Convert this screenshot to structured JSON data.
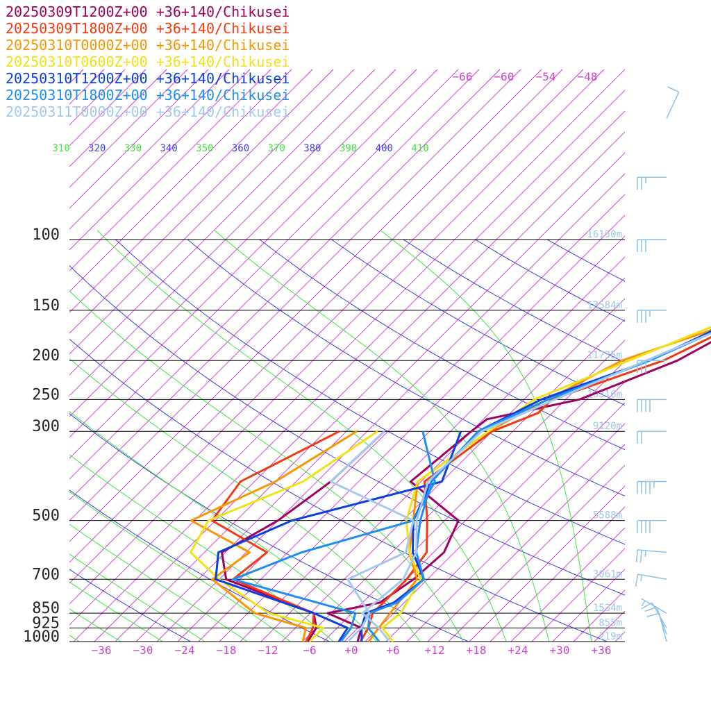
{
  "chart_data": {
    "type": "line",
    "title": "",
    "xlabel": "",
    "ylabel": "",
    "legend_placement": "top-left",
    "xlim": [
      -40,
      40
    ],
    "pressure_range": [
      1000,
      100
    ],
    "pressure_levels": [
      100,
      150,
      200,
      250,
      300,
      500,
      700,
      850,
      925,
      1000
    ],
    "pressure_labels": [
      "100",
      "150",
      "200",
      "250",
      "300",
      "500",
      "700",
      "850",
      "925",
      "1000"
    ],
    "temperature_ticks": [
      -36,
      -30,
      -24,
      -18,
      -12,
      -6,
      0,
      6,
      12,
      18,
      24,
      30,
      36
    ],
    "temperature_tick_labels": [
      "−36",
      "−30",
      "−24",
      "−18",
      "−12",
      "−6",
      "+0",
      "+6",
      "+12",
      "+18",
      "+24",
      "+30",
      "+36"
    ],
    "upper_temperature_labels": [
      "−66",
      "−60",
      "−54",
      "−48"
    ],
    "theta_e_labels": [
      "310",
      "320",
      "330",
      "340",
      "350",
      "360",
      "370",
      "380",
      "390",
      "400",
      "410"
    ],
    "height_labels": [
      {
        "p": 100,
        "text": "16150m"
      },
      {
        "p": 150,
        "text": "13584m"
      },
      {
        "p": 200,
        "text": "11735m"
      },
      {
        "p": 250,
        "text": "10316m"
      },
      {
        "p": 300,
        "text": "9120m"
      },
      {
        "p": 500,
        "text": "5588m"
      },
      {
        "p": 700,
        "text": "3061m"
      },
      {
        "p": 850,
        "text": "1534m"
      },
      {
        "p": 925,
        "text": "855m"
      },
      {
        "p": 1000,
        "text": "219m"
      }
    ],
    "colors": {
      "isotherm": "#d02ad0",
      "theta": "#3c3ce8",
      "theta_e": "#3be83b",
      "isobar": "#000000",
      "height": "#9fc6e8",
      "axis_label": "#d040d0",
      "wind": "#8ec0ea"
    },
    "series": [
      {
        "name": "20250309T1200Z+00 +36+140/Chikusei",
        "color": "#a0005f",
        "temperature": [
          [
            1000,
            0.9
          ],
          [
            925,
            -0.5
          ],
          [
            850,
            -7.5
          ],
          [
            800,
            -1.5
          ],
          [
            700,
            0.0
          ],
          [
            600,
            0.5
          ],
          [
            500,
            -2.0
          ],
          [
            400,
            -14.5
          ],
          [
            300,
            -13.0
          ],
          [
            280,
            -12.5
          ],
          [
            250,
            -2.0
          ],
          [
            200,
            6.5
          ],
          [
            150,
            12.5
          ],
          [
            100,
            6.0
          ],
          [
            80,
            2.0
          ],
          [
            60,
            7.0
          ],
          [
            42,
            12.0
          ]
        ],
        "dewpoint": [
          [
            1000,
            -6.3
          ],
          [
            925,
            -7.0
          ],
          [
            850,
            -9.5
          ],
          [
            700,
            -27.0
          ],
          [
            600,
            -31.5
          ],
          [
            500,
            -28.0
          ],
          [
            400,
            -26.0
          ],
          [
            300,
            -25.5
          ]
        ]
      },
      {
        "name": "20250309T1800Z+00 +36+140/Chikusei",
        "color": "#f23a12",
        "temperature": [
          [
            1000,
            1.3
          ],
          [
            925,
            0.5
          ],
          [
            850,
            -1.0
          ],
          [
            700,
            -1.0
          ],
          [
            600,
            -2.0
          ],
          [
            500,
            -6.5
          ],
          [
            400,
            -12.5
          ],
          [
            300,
            -10.0
          ],
          [
            270,
            -6.0
          ],
          [
            250,
            -6.0
          ],
          [
            200,
            4.5
          ],
          [
            150,
            12.0
          ],
          [
            100,
            7.5
          ],
          [
            90,
            4.0
          ],
          [
            80,
            3.0
          ],
          [
            60,
            9.0
          ],
          [
            42,
            12.0
          ]
        ],
        "dewpoint": [
          [
            1000,
            -6.5
          ],
          [
            925,
            -7.5
          ],
          [
            850,
            -9.5
          ],
          [
            700,
            -26.0
          ],
          [
            600,
            -25.0
          ],
          [
            500,
            -37.5
          ],
          [
            400,
            -39.0
          ],
          [
            300,
            -32.0
          ]
        ]
      },
      {
        "name": "20250310T0000Z+00 +36+140/Chikusei",
        "color": "#f99500",
        "temperature": [
          [
            1000,
            2.5
          ],
          [
            925,
            2.0
          ],
          [
            850,
            1.5
          ],
          [
            700,
            0.5
          ],
          [
            600,
            -4.5
          ],
          [
            500,
            -8.5
          ],
          [
            400,
            -13.5
          ],
          [
            300,
            -10.5
          ],
          [
            260,
            -7.5
          ],
          [
            200,
            -1.5
          ],
          [
            150,
            12.5
          ],
          [
            100,
            7.5
          ],
          [
            80,
            5.5
          ],
          [
            60,
            14.0
          ],
          [
            42,
            14.0
          ]
        ],
        "dewpoint": [
          [
            1000,
            -7.0
          ],
          [
            925,
            -8.5
          ],
          [
            850,
            -18.0
          ],
          [
            700,
            -29.0
          ],
          [
            600,
            -27.5
          ],
          [
            500,
            -40.5
          ],
          [
            400,
            -34.0
          ],
          [
            300,
            -29.5
          ]
        ]
      },
      {
        "name": "20250310T0600Z+00 +36+140/Chikusei",
        "color": "#f0e214",
        "temperature": [
          [
            1000,
            6.0
          ],
          [
            925,
            2.5
          ],
          [
            850,
            3.0
          ],
          [
            700,
            1.0
          ],
          [
            600,
            -4.5
          ],
          [
            500,
            -9.5
          ],
          [
            400,
            -13.5
          ],
          [
            300,
            -10.5
          ],
          [
            250,
            -8.5
          ],
          [
            200,
            -0.5
          ],
          [
            150,
            10.0
          ],
          [
            100,
            9.0
          ],
          [
            80,
            8.0
          ],
          [
            60,
            14.0
          ],
          [
            42,
            14.0
          ]
        ],
        "dewpoint": [
          [
            1000,
            -6.0
          ],
          [
            925,
            -6.0
          ],
          [
            850,
            -16.0
          ],
          [
            700,
            -28.0
          ],
          [
            600,
            -36.0
          ],
          [
            500,
            -38.0
          ],
          [
            400,
            -30.0
          ],
          [
            300,
            -26.5
          ]
        ]
      },
      {
        "name": "20250310T1200Z+00 +36+140/Chikusei",
        "color": "#0a3fe2",
        "temperature": [
          [
            1000,
            1.5
          ],
          [
            925,
            -0.5
          ],
          [
            850,
            -2.0
          ],
          [
            800,
            0.5
          ],
          [
            700,
            1.5
          ],
          [
            600,
            -4.0
          ],
          [
            500,
            -8.5
          ],
          [
            400,
            -11.5
          ],
          [
            300,
            -12.0
          ],
          [
            250,
            -7.5
          ],
          [
            200,
            2.5
          ],
          [
            150,
            10.5
          ],
          [
            100,
            9.0
          ],
          [
            80,
            8.0
          ],
          [
            60,
            14.5
          ],
          [
            42,
            14.5
          ]
        ],
        "dewpoint": [
          [
            1000,
            -1.8
          ],
          [
            925,
            -2.5
          ],
          [
            850,
            -9.5
          ],
          [
            700,
            -28.5
          ],
          [
            600,
            -32.0
          ],
          [
            500,
            -26.0
          ],
          [
            400,
            -10.0
          ],
          [
            300,
            -14.5
          ]
        ]
      },
      {
        "name": "20250310T1800Z+00 +36+140/Chikusei",
        "color": "#1f8ef0",
        "temperature": [
          [
            1000,
            4.0
          ],
          [
            925,
            0.5
          ],
          [
            850,
            -1.5
          ],
          [
            800,
            1.0
          ],
          [
            700,
            1.5
          ],
          [
            600,
            -3.5
          ],
          [
            500,
            -7.5
          ],
          [
            400,
            -11.5
          ],
          [
            300,
            -12.0
          ],
          [
            250,
            -6.5
          ],
          [
            200,
            2.5
          ],
          [
            150,
            11.5
          ],
          [
            100,
            9.5
          ],
          [
            80,
            7.0
          ],
          [
            60,
            14.5
          ],
          [
            42,
            14.5
          ]
        ],
        "dewpoint": [
          [
            1000,
            -1.5
          ],
          [
            925,
            -2.0
          ],
          [
            850,
            -3.5
          ],
          [
            700,
            -26.0
          ],
          [
            600,
            -20.0
          ],
          [
            500,
            -8.5
          ],
          [
            400,
            -11.0
          ],
          [
            300,
            -20.0
          ]
        ]
      },
      {
        "name": "20250311T0000Z+00 +36+140/Chikusei",
        "color": "#a4c8f0",
        "temperature": [
          [
            1000,
            5.5
          ],
          [
            925,
            2.0
          ],
          [
            850,
            -2.5
          ],
          [
            700,
            -1.5
          ],
          [
            600,
            -3.5
          ],
          [
            500,
            -8.0
          ],
          [
            400,
            -12.0
          ],
          [
            300,
            -11.5
          ],
          [
            250,
            -5.5
          ],
          [
            200,
            2.0
          ],
          [
            150,
            12.0
          ],
          [
            100,
            11.0
          ],
          [
            80,
            6.0
          ],
          [
            60,
            14.5
          ],
          [
            42,
            15.0
          ]
        ],
        "dewpoint": [
          [
            1000,
            -0.5
          ],
          [
            925,
            -0.5
          ],
          [
            850,
            -1.5
          ],
          [
            700,
            -9.5
          ],
          [
            600,
            -5.0
          ],
          [
            500,
            -8.5
          ],
          [
            400,
            -26.0
          ],
          [
            300,
            -25.5
          ]
        ]
      }
    ],
    "wind_barbs": [
      {
        "p": 1000,
        "speed_kt": 10,
        "dir_deg": 345
      },
      {
        "p": 960,
        "speed_kt": 10,
        "dir_deg": 340
      },
      {
        "p": 925,
        "speed_kt": 10,
        "dir_deg": 330
      },
      {
        "p": 850,
        "speed_kt": 5,
        "dir_deg": 300
      },
      {
        "p": 700,
        "speed_kt": 15,
        "dir_deg": 280
      },
      {
        "p": 600,
        "speed_kt": 25,
        "dir_deg": 275
      },
      {
        "p": 500,
        "speed_kt": 40,
        "dir_deg": 270
      },
      {
        "p": 400,
        "speed_kt": 45,
        "dir_deg": 270
      },
      {
        "p": 300,
        "speed_kt": 20,
        "dir_deg": 270
      },
      {
        "p": 250,
        "speed_kt": 40,
        "dir_deg": 270
      },
      {
        "p": 200,
        "speed_kt": 30,
        "dir_deg": 270
      },
      {
        "p": 150,
        "speed_kt": 35,
        "dir_deg": 270
      },
      {
        "p": 100,
        "speed_kt": 30,
        "dir_deg": 270
      },
      {
        "p": 70,
        "speed_kt": 25,
        "dir_deg": 270
      },
      {
        "p": 50,
        "speed_kt": 10,
        "dir_deg": 25
      }
    ]
  }
}
